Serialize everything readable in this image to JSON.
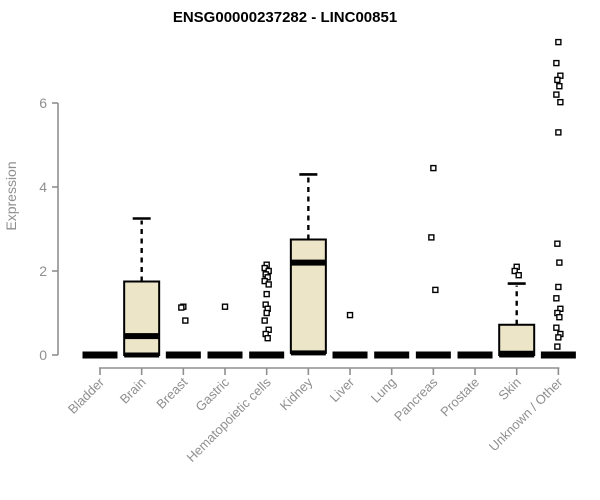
{
  "page": {
    "background": "#ffffff"
  },
  "chart_data": {
    "type": "box",
    "title": "ENSG00000237282 - LINC00851",
    "ylabel": "Expression",
    "xlabel": "",
    "yticks": [
      0,
      2,
      4,
      6
    ],
    "ylim": [
      0,
      7.6
    ],
    "grid": false,
    "legend_position": "none",
    "categories": [
      "Bladder",
      "Brain",
      "Breast",
      "Gastric",
      "Hematopoietic cells",
      "Kidney",
      "Liver",
      "Lung",
      "Pancreas",
      "Prostate",
      "Skin",
      "Unknown / Other"
    ],
    "boxes": [
      {
        "category": "Bladder",
        "q1": 0,
        "median": 0,
        "q3": 0,
        "whisker_low": 0,
        "whisker_high": 0,
        "outliers": []
      },
      {
        "category": "Brain",
        "q1": 0,
        "median": 0.45,
        "q3": 1.75,
        "whisker_low": 0,
        "whisker_high": 3.25,
        "outliers": []
      },
      {
        "category": "Breast",
        "q1": 0,
        "median": 0,
        "q3": 0,
        "whisker_low": 0,
        "whisker_high": 0,
        "outliers": [
          1.15,
          1.13,
          0.82
        ]
      },
      {
        "category": "Gastric",
        "q1": 0,
        "median": 0,
        "q3": 0,
        "whisker_low": 0,
        "whisker_high": 0,
        "outliers": [
          1.15
        ]
      },
      {
        "category": "Hematopoietic cells",
        "q1": 0,
        "median": 0,
        "q3": 0,
        "whisker_low": 0,
        "whisker_high": 0,
        "outliers": [
          2.15,
          2.07,
          2.0,
          1.92,
          1.85,
          1.76,
          1.68,
          1.45,
          1.2,
          1.1,
          1.0,
          0.82,
          0.6,
          0.5,
          0.4
        ]
      },
      {
        "category": "Kidney",
        "q1": 0.05,
        "median": 2.2,
        "q3": 2.75,
        "whisker_low": 0.05,
        "whisker_high": 4.3,
        "outliers": []
      },
      {
        "category": "Liver",
        "q1": 0,
        "median": 0,
        "q3": 0,
        "whisker_low": 0,
        "whisker_high": 0,
        "outliers": [
          0.95
        ]
      },
      {
        "category": "Lung",
        "q1": 0,
        "median": 0,
        "q3": 0,
        "whisker_low": 0,
        "whisker_high": 0,
        "outliers": []
      },
      {
        "category": "Pancreas",
        "q1": 0,
        "median": 0,
        "q3": 0,
        "whisker_low": 0,
        "whisker_high": 0,
        "outliers": [
          4.45,
          2.8,
          1.55
        ]
      },
      {
        "category": "Prostate",
        "q1": 0,
        "median": 0,
        "q3": 0,
        "whisker_low": 0,
        "whisker_high": 0,
        "outliers": []
      },
      {
        "category": "Skin",
        "q1": 0,
        "median": 0.03,
        "q3": 0.72,
        "whisker_low": 0,
        "whisker_high": 1.7,
        "outliers": [
          2.1,
          2.0,
          1.9
        ]
      },
      {
        "category": "Unknown / Other",
        "q1": 0,
        "median": 0,
        "q3": 0,
        "whisker_low": 0,
        "whisker_high": 0,
        "outliers": [
          7.45,
          6.95,
          6.65,
          6.55,
          6.4,
          6.2,
          6.02,
          5.3,
          2.65,
          2.2,
          1.62,
          1.35,
          1.1,
          1.0,
          0.9,
          0.65,
          0.5,
          0.42,
          0.2
        ]
      }
    ],
    "colors": {
      "box_fill": "#ede5c8",
      "box_stroke": "#000000",
      "median": "#000000",
      "outlier_stroke": "#000000",
      "outlier_fill": "#ffffff",
      "axis": "#8f8f8f",
      "tick_label": "#8f8f8f",
      "title": "#000000"
    }
  }
}
